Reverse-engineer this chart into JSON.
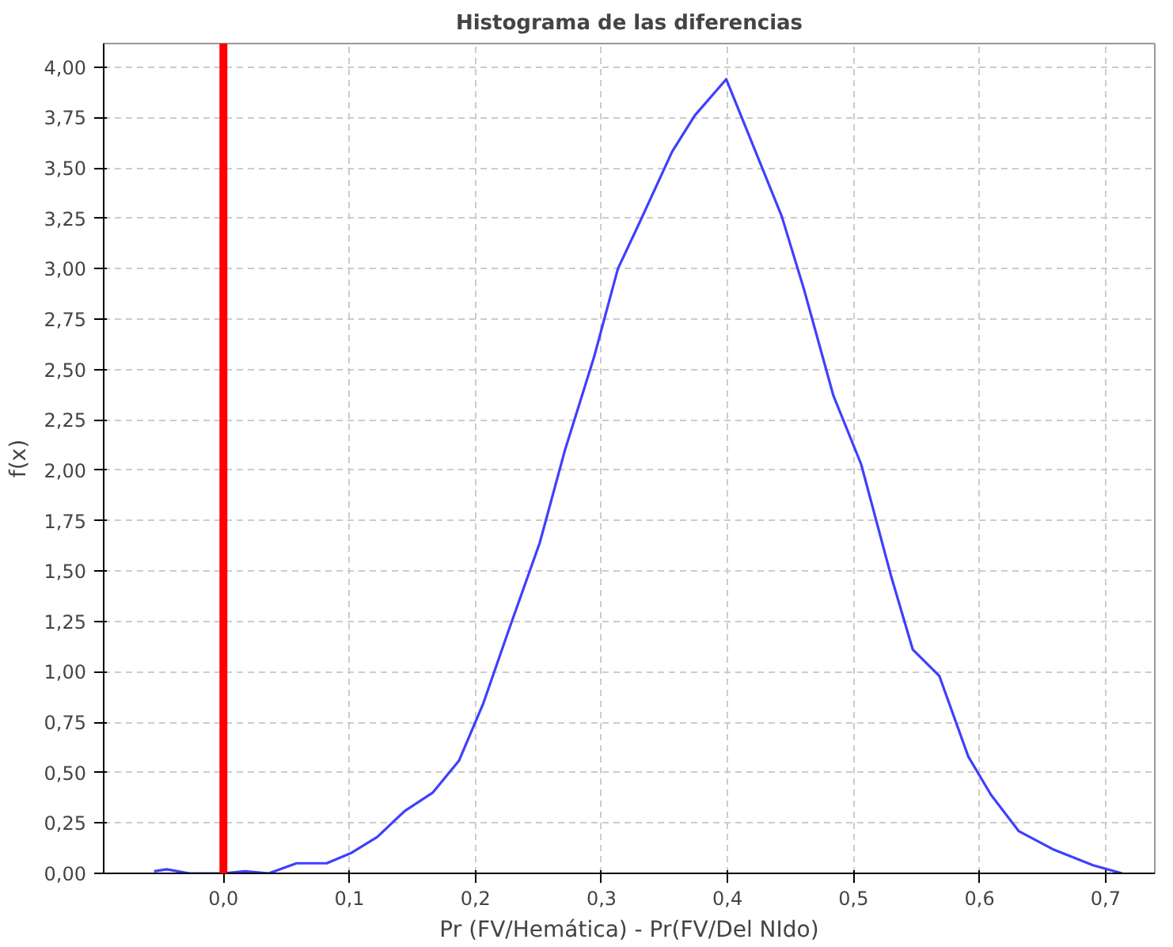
{
  "chart_data": {
    "type": "line",
    "title": "Histograma de las diferencias",
    "xlabel": "Pr (FV/Hemática) - Pr(FV/Del NIdo)",
    "ylabel": "f(x)",
    "x": [
      -0.055,
      -0.045,
      -0.027,
      0,
      0.017,
      0.036,
      0.058,
      0.082,
      0.101,
      0.122,
      0.144,
      0.166,
      0.187,
      0.206,
      0.226,
      0.251,
      0.271,
      0.294,
      0.313,
      0.331,
      0.356,
      0.374,
      0.399,
      0.443,
      0.461,
      0.484,
      0.506,
      0.53,
      0.547,
      0.568,
      0.591,
      0.609,
      0.631,
      0.658,
      0.69,
      0.713
    ],
    "series": [
      {
        "color": "#3f3fff",
        "values": [
          0.01,
          0.02,
          0,
          0,
          0.01,
          0,
          0.05,
          0.05,
          0.1,
          0.18,
          0.31,
          0.4,
          0.56,
          0.84,
          1.2,
          1.64,
          2.1,
          2.56,
          3.0,
          3.24,
          3.58,
          3.76,
          3.94,
          3.26,
          2.89,
          2.37,
          2.03,
          1.47,
          1.11,
          0.98,
          0.58,
          0.39,
          0.21,
          0.12,
          0.04,
          0
        ]
      }
    ],
    "xlim": [
      -0.095,
      0.739
    ],
    "ylim": [
      0,
      4.117
    ],
    "xticks": [
      {
        "value": 0,
        "label": "0,0"
      },
      {
        "value": 0.1,
        "label": "0,1"
      },
      {
        "value": 0.2,
        "label": "0,2"
      },
      {
        "value": 0.3,
        "label": "0,3"
      },
      {
        "value": 0.4,
        "label": "0,4"
      },
      {
        "value": 0.5,
        "label": "0,5"
      },
      {
        "value": 0.6,
        "label": "0,6"
      },
      {
        "value": 0.7,
        "label": "0,7"
      }
    ],
    "yticks": [
      {
        "value": 0,
        "label": "0,00"
      },
      {
        "value": 0.25,
        "label": "0,25"
      },
      {
        "value": 0.5,
        "label": "0,50"
      },
      {
        "value": 0.75,
        "label": "0,75"
      },
      {
        "value": 1,
        "label": "1,00"
      },
      {
        "value": 1.25,
        "label": "1,25"
      },
      {
        "value": 1.5,
        "label": "1,50"
      },
      {
        "value": 1.75,
        "label": "1,75"
      },
      {
        "value": 2,
        "label": "2,00"
      },
      {
        "value": 2.25,
        "label": "2,25"
      },
      {
        "value": 2.5,
        "label": "2,50"
      },
      {
        "value": 2.75,
        "label": "2,75"
      },
      {
        "value": 3,
        "label": "3,00"
      },
      {
        "value": 3.25,
        "label": "3,25"
      },
      {
        "value": 3.5,
        "label": "3,50"
      },
      {
        "value": 3.75,
        "label": "3,75"
      },
      {
        "value": 4,
        "label": "4,00"
      }
    ],
    "ref_lines": [
      {
        "axis": "x",
        "value": 0,
        "color": "#ff0000"
      }
    ],
    "grid": true,
    "marker": "none",
    "line_style": "solid"
  }
}
